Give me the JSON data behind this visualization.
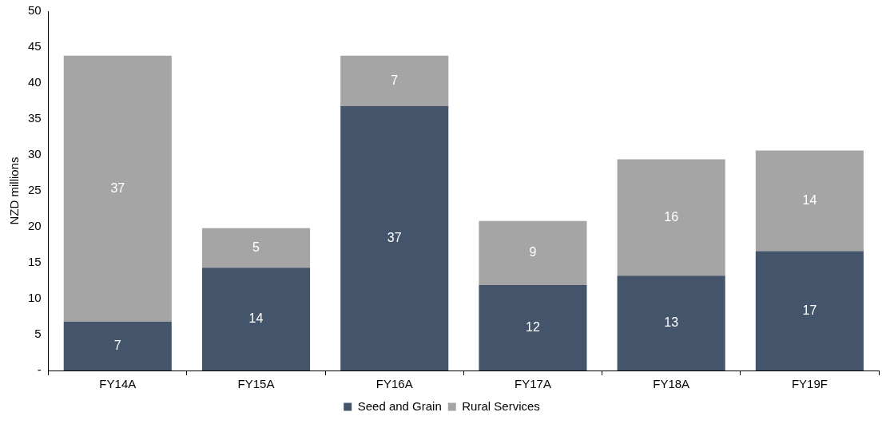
{
  "chart_data": {
    "type": "bar",
    "stacked": true,
    "ylabel": "NZD millions",
    "categories": [
      "FY14A",
      "FY15A",
      "FY16A",
      "FY17A",
      "FY18A",
      "FY19F"
    ],
    "series": [
      {
        "name": "Seed and Grain",
        "color": "#44546a",
        "values": [
          6.8,
          14.3,
          36.8,
          11.9,
          13.2,
          16.6
        ],
        "value_labels": [
          "7",
          "14",
          "37",
          "12",
          "13",
          "17"
        ]
      },
      {
        "name": "Rural Services",
        "color": "#a5a5a5",
        "values": [
          37.0,
          5.5,
          7.0,
          8.9,
          16.2,
          14.0
        ],
        "value_labels": [
          "37",
          "5",
          "7",
          "9",
          "16",
          "14"
        ]
      }
    ],
    "ylim": [
      0,
      50
    ],
    "yticks": [
      {
        "value": 0,
        "label": "-"
      },
      5,
      10,
      15,
      20,
      25,
      30,
      35,
      40,
      45,
      50
    ],
    "legend": "bottom"
  }
}
